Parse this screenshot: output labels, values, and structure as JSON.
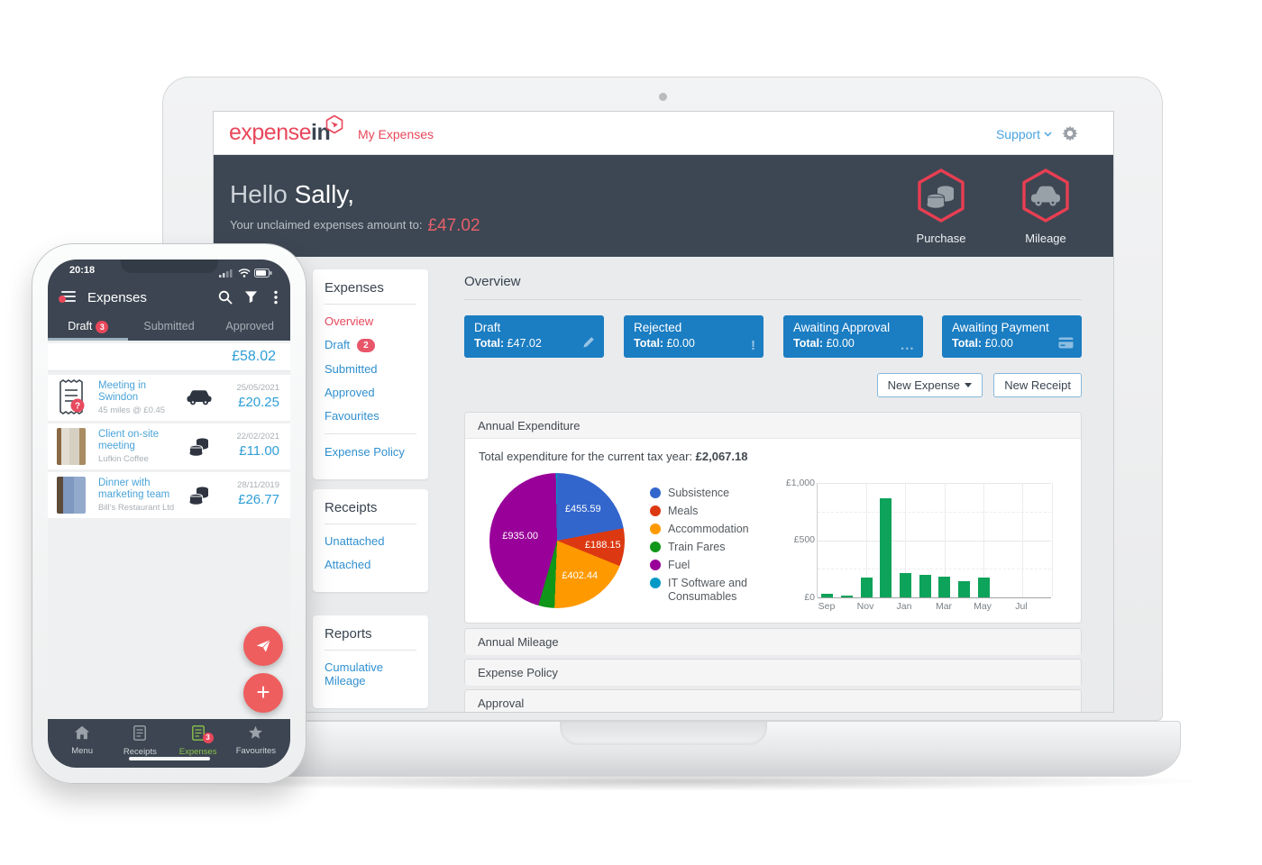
{
  "colors": {
    "accent_red": "#e8475b",
    "hero_dark": "#3d4753",
    "card_blue": "#1b7dc2",
    "link_blue": "#3090d0",
    "phone_amount_blue": "#2f9ed6",
    "nav_active_green": "#8bc34a",
    "bar_green": "#0ea35a"
  },
  "laptop": {
    "header": {
      "logo_part1": "expense",
      "logo_part2": "in",
      "nav_label": "My Expenses",
      "support_label": "Support"
    },
    "hero": {
      "greeting_light": "Hello ",
      "greeting_name": "Sally,",
      "subtitle": "Your unclaimed expenses amount to:",
      "amount": "£47.02",
      "actions": [
        {
          "label": "Purchase",
          "icon": "coins-icon"
        },
        {
          "label": "Mileage",
          "icon": "car-icon"
        }
      ]
    },
    "sidebar": {
      "sections": [
        {
          "title": "Expenses",
          "links": [
            {
              "label": "Overview",
              "active": true
            },
            {
              "label": "Draft",
              "badge": "2"
            },
            {
              "label": "Submitted"
            },
            {
              "label": "Approved"
            },
            {
              "label": "Favourites"
            },
            {
              "label": "Expense Policy"
            }
          ]
        },
        {
          "title": "Receipts",
          "links": [
            {
              "label": "Unattached"
            },
            {
              "label": "Attached"
            }
          ]
        },
        {
          "title": "Reports",
          "links": [
            {
              "label": "Cumulative Mileage"
            }
          ]
        }
      ]
    },
    "overview": {
      "title": "Overview",
      "total_word": "Total:",
      "cards": [
        {
          "title": "Draft",
          "total": "£47.02",
          "icon": "pencil-icon"
        },
        {
          "title": "Rejected",
          "total": "£0.00",
          "icon": "exclamation-icon"
        },
        {
          "title": "Awaiting Approval",
          "total": "£0.00",
          "icon": "ellipsis-icon"
        },
        {
          "title": "Awaiting Payment",
          "total": "£0.00",
          "icon": "credit-card-icon"
        }
      ],
      "buttons": {
        "new_expense": "New Expense",
        "new_receipt": "New Receipt"
      }
    },
    "panels": {
      "annual_expenditure_title": "Annual Expenditure",
      "total_prefix": "Total expenditure for the current tax year:",
      "total_value": "£2,067.18",
      "collapsed": [
        "Annual Mileage",
        "Expense Policy",
        "Approval"
      ]
    }
  },
  "chart_data": [
    {
      "type": "pie",
      "title": "Annual Expenditure",
      "total_label": "Total expenditure for the current tax year: £2,067.18",
      "total": 2067.18,
      "legend_position": "right",
      "slices": [
        {
          "label": "Subsistence",
          "value": 455.59,
          "data_label": "£455.59",
          "color": "#3366cc"
        },
        {
          "label": "Meals",
          "value": 188.15,
          "data_label": "£188.15",
          "color": "#dc3912"
        },
        {
          "label": "Accommodation",
          "value": 402.44,
          "data_label": "£402.44",
          "color": "#ff9900"
        },
        {
          "label": "Train Fares",
          "value": 80.0,
          "data_label": "",
          "color": "#109618"
        },
        {
          "label": "Fuel",
          "value": 935.0,
          "data_label": "£935.00",
          "color": "#990099"
        },
        {
          "label": "IT Software and Consumables",
          "value": 6.0,
          "data_label": "",
          "color": "#0099c6"
        }
      ]
    },
    {
      "type": "bar",
      "x": [
        "Sep",
        "Oct",
        "Nov",
        "Dec",
        "Jan",
        "Feb",
        "Mar",
        "Apr",
        "May",
        "Jun",
        "Jul",
        "Aug"
      ],
      "values": [
        30,
        12,
        170,
        870,
        215,
        200,
        185,
        145,
        175,
        0,
        0,
        0
      ],
      "color": "#0ea35a",
      "ylim": [
        0,
        1000
      ],
      "ytick_labels": [
        "£1,000",
        "£500",
        "£0"
      ],
      "xticks_shown": [
        "Sep",
        "Nov",
        "Jan",
        "Mar",
        "May",
        "Jul"
      ],
      "grid": true
    }
  ],
  "phone": {
    "status": {
      "time": "20:18"
    },
    "header": {
      "title": "Expenses"
    },
    "tabs": [
      {
        "label": "Draft",
        "badge": "3",
        "active": true
      },
      {
        "label": "Submitted"
      },
      {
        "label": "Approved"
      }
    ],
    "total_amount": "£58.02",
    "items": [
      {
        "title": "Meeting in Swindon",
        "subtitle": "45 miles @ £0.45",
        "date": "25/05/2021",
        "amount": "£20.25",
        "type_icon": "car-icon",
        "thumb": "receipt-question"
      },
      {
        "title": "Client on-site meeting",
        "subtitle": "Lufkin Coffee",
        "date": "22/02/2021",
        "amount": "£11.00",
        "type_icon": "coins-icon",
        "thumb": "photo-tan"
      },
      {
        "title": "Dinner with marketing team",
        "subtitle": "Bill's Restaurant Ltd",
        "date": "28/11/2019",
        "amount": "£26.77",
        "type_icon": "coins-icon",
        "thumb": "photo-blue"
      }
    ],
    "nav": [
      {
        "label": "Menu",
        "icon": "home-icon"
      },
      {
        "label": "Receipts",
        "icon": "receipt-icon"
      },
      {
        "label": "Expenses",
        "icon": "receipt-icon",
        "badge": "3",
        "active": true
      },
      {
        "label": "Favourites",
        "icon": "star-icon"
      }
    ]
  }
}
